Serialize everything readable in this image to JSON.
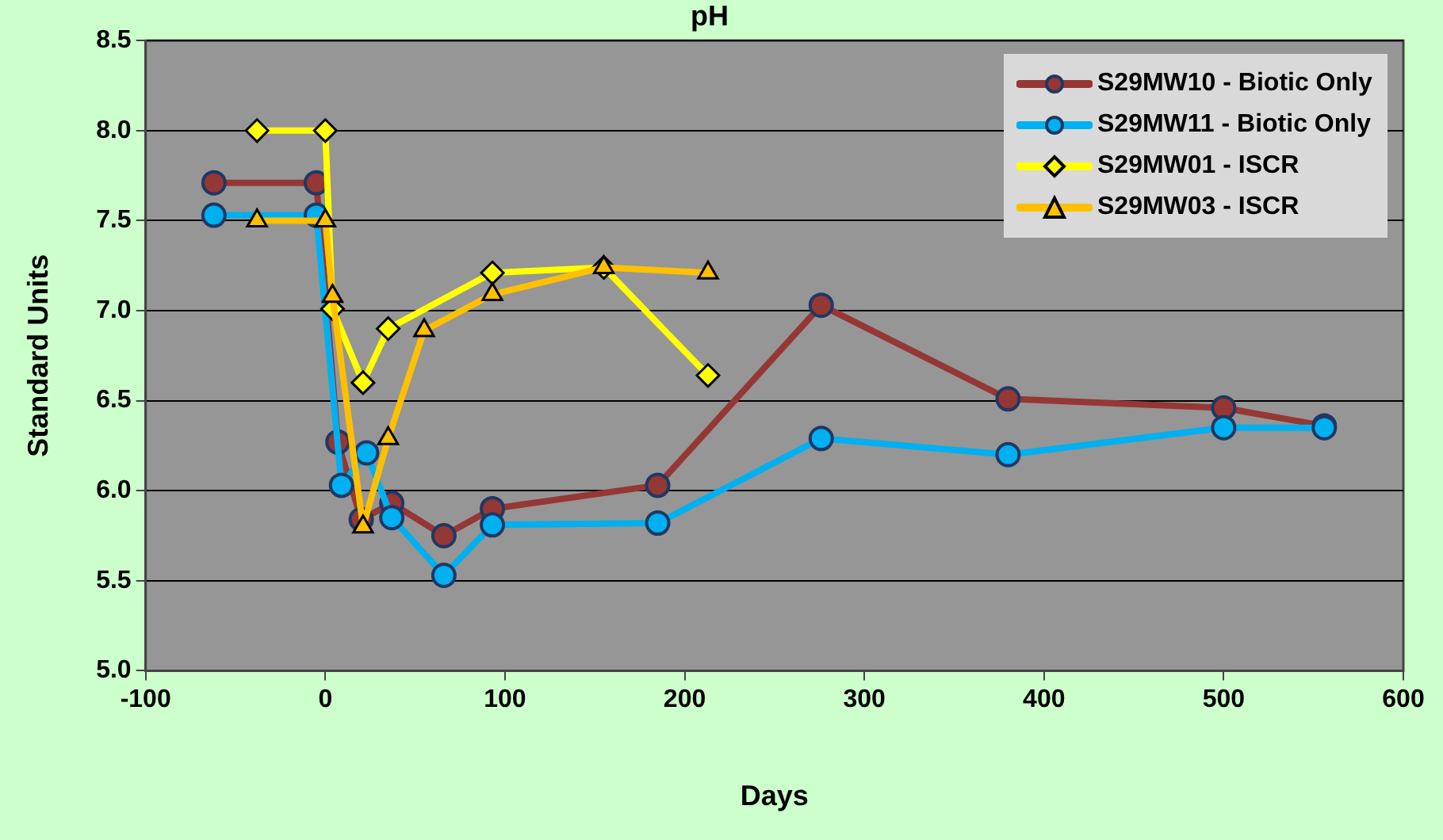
{
  "chart_data": {
    "type": "line",
    "title": "pH",
    "xlabel": "Days",
    "ylabel": "Standard Units",
    "xlim": [
      -100,
      600
    ],
    "xticks": [
      -100,
      0,
      100,
      200,
      300,
      400,
      500,
      600
    ],
    "ylim": [
      5.0,
      8.5
    ],
    "yticks": [
      {
        "value": 5.0,
        "label": "5.0"
      },
      {
        "value": 5.5,
        "label": "5.5"
      },
      {
        "value": 6.0,
        "label": "6.0"
      },
      {
        "value": 6.5,
        "label": "6.5"
      },
      {
        "value": 7.0,
        "label": "7.0"
      },
      {
        "value": 7.5,
        "label": "7.5"
      },
      {
        "value": 8.0,
        "label": "8.0"
      },
      {
        "value": 8.5,
        "label": "8.5"
      }
    ],
    "grid": "y",
    "legend": "top right",
    "line_style": "solid",
    "series": [
      {
        "name": "S29MW10 - Biotic Only",
        "color": "#953735",
        "marker": "circle",
        "x": [
          -62,
          -5,
          7,
          20,
          37,
          66,
          93,
          185,
          276,
          380,
          500,
          556
        ],
        "values": [
          7.71,
          7.71,
          6.27,
          5.84,
          5.93,
          5.75,
          5.9,
          6.03,
          7.03,
          6.51,
          6.46,
          6.36
        ]
      },
      {
        "name": "S29MW11 - Biotic Only",
        "color": "#00b0f0",
        "marker": "circle",
        "x": [
          -62,
          -5,
          9,
          23,
          37,
          66,
          93,
          185,
          276,
          380,
          500,
          556
        ],
        "values": [
          7.53,
          7.53,
          6.03,
          6.21,
          5.85,
          5.53,
          5.81,
          5.82,
          6.29,
          6.2,
          6.35,
          6.35
        ]
      },
      {
        "name": "S29MW01 - ISCR",
        "color": "#ffff00",
        "marker": "diamond",
        "x": [
          -38,
          0,
          4,
          21,
          35,
          93,
          155,
          213
        ],
        "values": [
          8.0,
          8.0,
          7.01,
          6.6,
          6.9,
          7.21,
          7.24,
          6.64
        ]
      },
      {
        "name": "S29MW03 - ISCR",
        "color": "#ffc000",
        "marker": "triangle",
        "x": [
          -38,
          0,
          4,
          21,
          35,
          55,
          93,
          155,
          213
        ],
        "values": [
          7.5,
          7.5,
          7.08,
          5.8,
          6.29,
          6.89,
          7.09,
          7.24,
          7.21
        ]
      }
    ]
  }
}
